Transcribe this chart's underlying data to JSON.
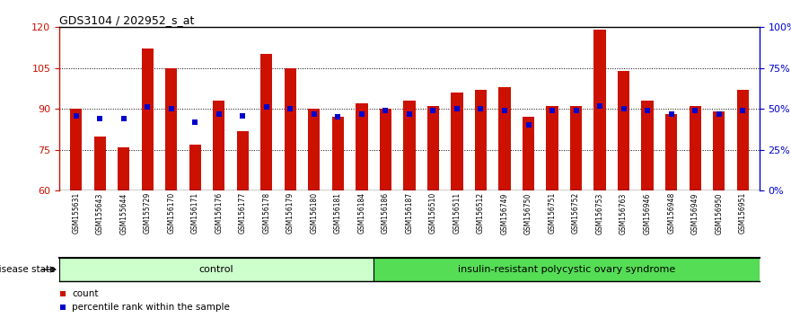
{
  "title": "GDS3104 / 202952_s_at",
  "samples": [
    "GSM155631",
    "GSM155643",
    "GSM155644",
    "GSM155729",
    "GSM156170",
    "GSM156171",
    "GSM156176",
    "GSM156177",
    "GSM156178",
    "GSM156179",
    "GSM156180",
    "GSM156181",
    "GSM156184",
    "GSM156186",
    "GSM156187",
    "GSM156510",
    "GSM156511",
    "GSM156512",
    "GSM156749",
    "GSM156750",
    "GSM156751",
    "GSM156752",
    "GSM156753",
    "GSM156763",
    "GSM156946",
    "GSM156948",
    "GSM156949",
    "GSM156950",
    "GSM156951"
  ],
  "bar_values": [
    90,
    80,
    76,
    112,
    105,
    77,
    93,
    82,
    110,
    105,
    90,
    87,
    92,
    90,
    93,
    91,
    96,
    97,
    98,
    87,
    91,
    91,
    119,
    104,
    93,
    88,
    91,
    89,
    97
  ],
  "percentile_values_pct": [
    46,
    44,
    44,
    51,
    50,
    42,
    47,
    46,
    51,
    50,
    47,
    45,
    47,
    49,
    47,
    49,
    50,
    50,
    49,
    40,
    49,
    49,
    52,
    50,
    49,
    47,
    49,
    47,
    49
  ],
  "control_count": 13,
  "ylim_left": [
    60,
    120
  ],
  "ylim_right": [
    0,
    100
  ],
  "yticks_left": [
    60,
    75,
    90,
    105,
    120
  ],
  "yticks_right": [
    0,
    25,
    50,
    75,
    100
  ],
  "bar_color": "#CC1100",
  "percentile_color": "#0000CC",
  "control_label": "control",
  "disease_label": "insulin-resistant polycystic ovary syndrome",
  "control_bg": "#CCFFCC",
  "disease_bg": "#55DD55",
  "xlabel_label": "disease state",
  "legend_count": "count",
  "legend_percentile": "percentile rank within the sample",
  "bar_width": 0.5,
  "percentile_marker_size": 4
}
